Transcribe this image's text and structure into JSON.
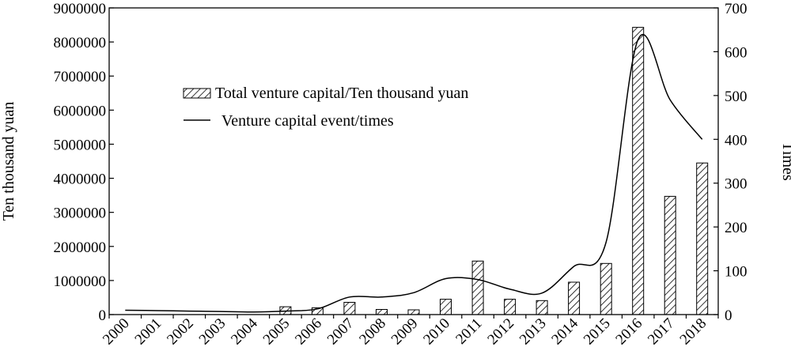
{
  "chart_data": {
    "type": "bar",
    "categories": [
      "2000",
      "2001",
      "2002",
      "2003",
      "2004",
      "2005",
      "2006",
      "2007",
      "2008",
      "2009",
      "2010",
      "2011",
      "2012",
      "2013",
      "2014",
      "2015",
      "2016",
      "2017",
      "2018"
    ],
    "series": [
      {
        "name": "Total venture capital/Ten thousand yuan",
        "type": "bar",
        "axis": "left",
        "values": [
          0,
          0,
          0,
          0,
          0,
          230000,
          200000,
          360000,
          150000,
          140000,
          450000,
          1570000,
          450000,
          410000,
          950000,
          1500000,
          8430000,
          3470000,
          4450000
        ]
      },
      {
        "name": "Venture capital event/times",
        "type": "line",
        "axis": "right",
        "smooth": true,
        "values": [
          10,
          9,
          8,
          7,
          6,
          8,
          13,
          40,
          40,
          50,
          82,
          80,
          58,
          49,
          110,
          165,
          628,
          490,
          400
        ]
      }
    ],
    "ylabel": "Ten thousand yuan",
    "ylabel_right": "Times",
    "ylim": [
      0,
      9000000
    ],
    "ylim_right": [
      0,
      700
    ],
    "yticks": [
      "0",
      "1000000",
      "2000000",
      "3000000",
      "4000000",
      "5000000",
      "6000000",
      "7000000",
      "8000000",
      "9000000"
    ],
    "yticks_right": [
      "0",
      "100",
      "200",
      "300",
      "400",
      "500",
      "600",
      "700"
    ],
    "grid": false,
    "legend_position": "upper-center"
  }
}
